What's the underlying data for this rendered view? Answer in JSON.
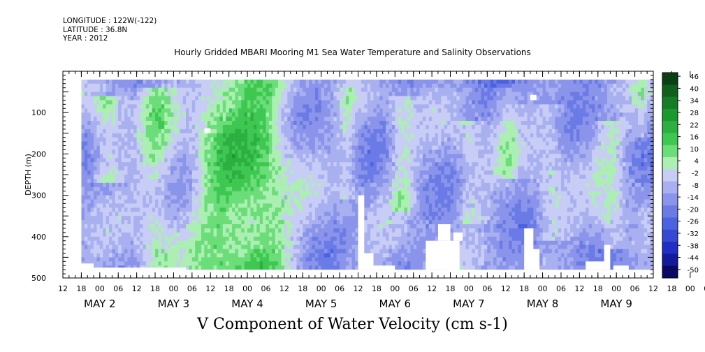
{
  "header": {
    "longitude": "LONGITUDE : 122W(-122)",
    "latitude": "LATITUDE : 36.8N",
    "year": "YEAR : 2012"
  },
  "chart_data": {
    "type": "heatmap",
    "title": "Hourly Gridded MBARI Mooring M1 Sea Water Temperature and Salinity Observations",
    "variable_label": "V Component of Water Velocity (cm s-1)",
    "ylabel": "DEPTH (m)",
    "ylim": [
      500,
      0
    ],
    "yticks": [
      100,
      200,
      300,
      400,
      500
    ],
    "xlim_hours": [
      "1 MAY 2012 12:00",
      "9 MAY 2012 12:00"
    ],
    "x_hour_ticks": [
      "12",
      "18",
      "00",
      "06",
      "12",
      "18",
      "00",
      "06",
      "12",
      "18",
      "00",
      "06",
      "12",
      "18",
      "00",
      "06",
      "12",
      "18",
      "00",
      "06",
      "12",
      "18",
      "00",
      "06",
      "12",
      "18",
      "00",
      "06",
      "12",
      "18",
      "00",
      "06",
      "12",
      "18",
      "00",
      "06",
      "12"
    ],
    "x_day_labels": [
      "MAY  2",
      "MAY  3",
      "MAY  4",
      "MAY  5",
      "MAY  6",
      "MAY  7",
      "MAY  8",
      "MAY  9"
    ],
    "data_start": "1 MAY 2012 18:00",
    "colorbar": {
      "min": -50,
      "max": 50,
      "labels": [
        "46",
        "40",
        "34",
        "28",
        "22",
        "16",
        "10",
        "4",
        "-2",
        "-8",
        "-14",
        "-20",
        "-26",
        "-32",
        "-38",
        "-44",
        "-50"
      ]
    },
    "grid": false,
    "colorbar_position": "right"
  }
}
